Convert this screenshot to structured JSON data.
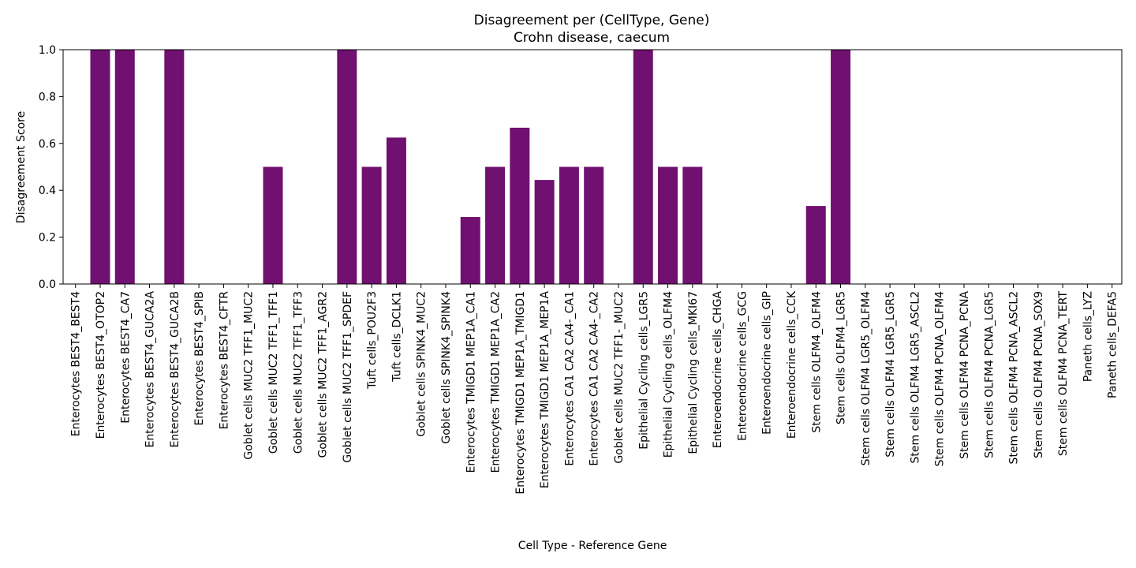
{
  "chart_data": {
    "type": "bar",
    "title": "Disagreement per (CellType, Gene)",
    "subtitle": "Crohn disease, caecum",
    "xlabel": "Cell Type - Reference Gene",
    "ylabel": "Disagreement Score",
    "ylim": [
      0,
      1
    ],
    "yticks": [
      "0.0",
      "0.2",
      "0.4",
      "0.6",
      "0.8",
      "1.0"
    ],
    "grid": false,
    "color": "#701070",
    "categories": [
      "Enterocytes BEST4_BEST4",
      "Enterocytes BEST4_OTOP2",
      "Enterocytes BEST4_CA7",
      "Enterocytes BEST4_GUCA2A",
      "Enterocytes BEST4_GUCA2B",
      "Enterocytes BEST4_SPIB",
      "Enterocytes BEST4_CFTR",
      "Goblet cells MUC2 TFF1_MUC2",
      "Goblet cells MUC2 TFF1_TFF1",
      "Goblet cells MUC2 TFF1_TFF3",
      "Goblet cells MUC2 TFF1_AGR2",
      "Goblet cells MUC2 TFF1_SPDEF",
      "Tuft cells_POU2F3",
      "Tuft cells_DCLK1",
      "Goblet cells SPINK4_MUC2",
      "Goblet cells SPINK4_SPINK4",
      "Enterocytes TMIGD1 MEP1A_CA1",
      "Enterocytes TMIGD1 MEP1A_CA2",
      "Enterocytes TMIGD1 MEP1A_TMIGD1",
      "Enterocytes TMIGD1 MEP1A_MEP1A",
      "Enterocytes CA1 CA2 CA4-_CA1",
      "Enterocytes CA1 CA2 CA4-_CA2",
      "Goblet cells MUC2 TFF1-_MUC2",
      "Epithelial Cycling cells_LGR5",
      "Epithelial Cycling cells_OLFM4",
      "Epithelial Cycling cells_MKI67",
      "Enteroendocrine cells_CHGA",
      "Enteroendocrine cells_GCG",
      "Enteroendocrine cells_GIP",
      "Enteroendocrine cells_CCK",
      "Stem cells OLFM4_OLFM4",
      "Stem cells OLFM4_LGR5",
      "Stem cells OLFM4 LGR5_OLFM4",
      "Stem cells OLFM4 LGR5_LGR5",
      "Stem cells OLFM4 LGR5_ASCL2",
      "Stem cells OLFM4 PCNA_OLFM4",
      "Stem cells OLFM4 PCNA_PCNA",
      "Stem cells OLFM4 PCNA_LGR5",
      "Stem cells OLFM4 PCNA_ASCL2",
      "Stem cells OLFM4 PCNA_SOX9",
      "Stem cells OLFM4 PCNA_TERT",
      "Paneth cells_LYZ",
      "Paneth cells_DEFA5"
    ],
    "values": [
      0,
      1.0,
      1.0,
      0,
      1.0,
      0,
      0,
      0,
      0.5,
      0,
      0,
      1.0,
      0.5,
      0.625,
      0,
      0,
      0.286,
      0.5,
      0.667,
      0.444,
      0.5,
      0.5,
      0,
      1.0,
      0.5,
      0.5,
      0,
      0,
      0,
      0,
      0.333,
      1.0,
      0,
      0,
      0,
      0,
      0,
      0,
      0,
      0,
      0,
      0,
      0
    ]
  }
}
